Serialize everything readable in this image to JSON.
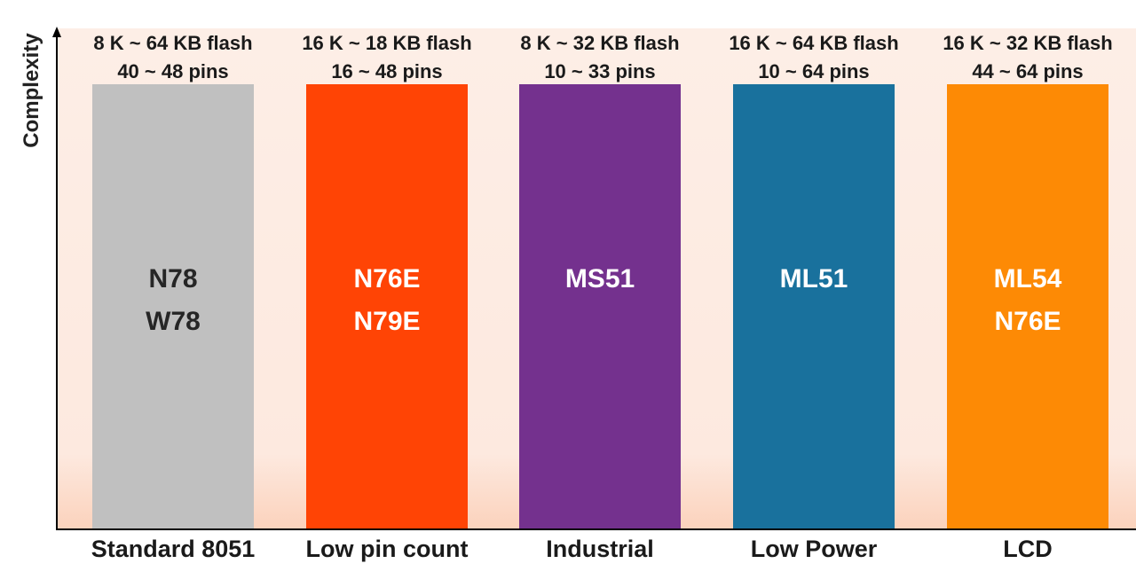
{
  "y_axis_label": "Complexity",
  "columns": [
    {
      "category": "Standard 8051",
      "flash": "8 K ~ 64 KB flash",
      "pins": "40 ~ 48 pins",
      "series": [
        "N78",
        "W78"
      ],
      "color": "#c0c0c0",
      "text_color": "#262626"
    },
    {
      "category": "Low pin count",
      "flash": "16 K ~ 18 KB flash",
      "pins": "16 ~ 48 pins",
      "series": [
        "N76E",
        "N79E"
      ],
      "color": "#ff4405",
      "text_color": "#ffffff"
    },
    {
      "category": "Industrial",
      "flash": "8 K ~ 32 KB flash",
      "pins": "10 ~ 33 pins",
      "series": [
        "MS51"
      ],
      "color": "#74318e",
      "text_color": "#ffffff"
    },
    {
      "category": "Low Power",
      "flash": "16 K ~ 64 KB flash",
      "pins": "10 ~ 64 pins",
      "series": [
        "ML51"
      ],
      "color": "#19719d",
      "text_color": "#ffffff"
    },
    {
      "category": "LCD",
      "flash": "16 K ~ 32 KB flash",
      "pins": "44 ~ 64 pins",
      "series": [
        "ML54",
        "N76E"
      ],
      "color": "#fd8a05",
      "text_color": "#ffffff"
    }
  ]
}
